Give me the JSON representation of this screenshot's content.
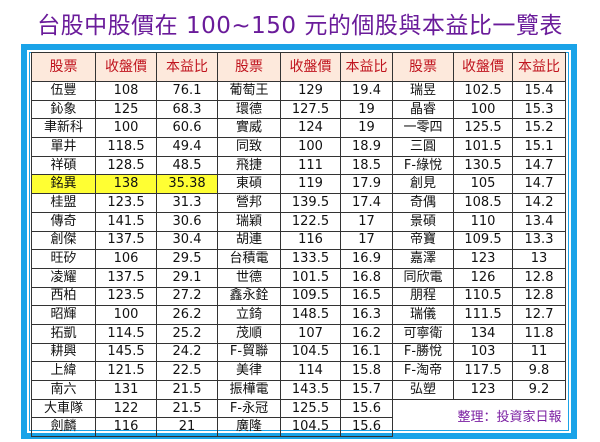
{
  "title": "台股中股價在 100~150 元的個股與本益比一覽表",
  "headers": [
    "股票",
    "收盤價",
    "本益比"
  ],
  "columns": [
    {
      "rows": [
        {
          "name": "伍豐",
          "close": "108",
          "pe": "76.1"
        },
        {
          "name": "鈊象",
          "close": "125",
          "pe": "68.3"
        },
        {
          "name": "聿新科",
          "close": "100",
          "pe": "60.6"
        },
        {
          "name": "單井",
          "close": "118.5",
          "pe": "49.4"
        },
        {
          "name": "祥碩",
          "close": "128.5",
          "pe": "48.5"
        },
        {
          "name": "銘異",
          "close": "138",
          "pe": "35.38",
          "highlight": true
        },
        {
          "name": "桂盟",
          "close": "123.5",
          "pe": "31.3"
        },
        {
          "name": "傳奇",
          "close": "141.5",
          "pe": "30.6"
        },
        {
          "name": "創傑",
          "close": "137.5",
          "pe": "30.4"
        },
        {
          "name": "旺矽",
          "close": "106",
          "pe": "29.5"
        },
        {
          "name": "凌耀",
          "close": "137.5",
          "pe": "29.1"
        },
        {
          "name": "西柏",
          "close": "123.5",
          "pe": "27.2"
        },
        {
          "name": "昭輝",
          "close": "100",
          "pe": "26.2"
        },
        {
          "name": "拓凱",
          "close": "114.5",
          "pe": "25.2"
        },
        {
          "name": "耕興",
          "close": "145.5",
          "pe": "24.2"
        },
        {
          "name": "上緯",
          "close": "121.5",
          "pe": "22.5"
        },
        {
          "name": "南六",
          "close": "131",
          "pe": "21.5"
        },
        {
          "name": "大車隊",
          "close": "122",
          "pe": "21.5"
        },
        {
          "name": "劍麟",
          "close": "116",
          "pe": "21"
        }
      ]
    },
    {
      "rows": [
        {
          "name": "葡萄王",
          "close": "129",
          "pe": "19.4"
        },
        {
          "name": "環德",
          "close": "127.5",
          "pe": "19"
        },
        {
          "name": "實威",
          "close": "124",
          "pe": "19"
        },
        {
          "name": "同致",
          "close": "100",
          "pe": "18.9"
        },
        {
          "name": "飛捷",
          "close": "111",
          "pe": "18.5"
        },
        {
          "name": "東碩",
          "close": "119",
          "pe": "17.9"
        },
        {
          "name": "營邦",
          "close": "139.5",
          "pe": "17.4"
        },
        {
          "name": "瑞穎",
          "close": "122.5",
          "pe": "17"
        },
        {
          "name": "胡連",
          "close": "116",
          "pe": "17"
        },
        {
          "name": "台積電",
          "close": "133.5",
          "pe": "16.9"
        },
        {
          "name": "世德",
          "close": "101.5",
          "pe": "16.8"
        },
        {
          "name": "鑫永銓",
          "close": "109.5",
          "pe": "16.5"
        },
        {
          "name": "立錡",
          "close": "148.5",
          "pe": "16.3"
        },
        {
          "name": "茂順",
          "close": "107",
          "pe": "16.2"
        },
        {
          "name": "F-貿聯",
          "close": "104.5",
          "pe": "16.1"
        },
        {
          "name": "美律",
          "close": "114",
          "pe": "15.8"
        },
        {
          "name": "振樺電",
          "close": "143.5",
          "pe": "15.7"
        },
        {
          "name": "F-永冠",
          "close": "125.5",
          "pe": "15.6"
        },
        {
          "name": "廣隆",
          "close": "104.5",
          "pe": "15.6"
        }
      ]
    },
    {
      "rows": [
        {
          "name": "瑞昱",
          "close": "102.5",
          "pe": "15.4"
        },
        {
          "name": "晶睿",
          "close": "100",
          "pe": "15.3"
        },
        {
          "name": "一零四",
          "close": "125.5",
          "pe": "15.2"
        },
        {
          "name": "三圓",
          "close": "101.5",
          "pe": "15.1"
        },
        {
          "name": "F-綠悅",
          "close": "130.5",
          "pe": "14.7"
        },
        {
          "name": "創見",
          "close": "105",
          "pe": "14.7"
        },
        {
          "name": "奇偶",
          "close": "108.5",
          "pe": "14.2"
        },
        {
          "name": "景碩",
          "close": "110",
          "pe": "13.4"
        },
        {
          "name": "帝寶",
          "close": "109.5",
          "pe": "13.3"
        },
        {
          "name": "嘉澤",
          "close": "123",
          "pe": "13"
        },
        {
          "name": "同欣電",
          "close": "126",
          "pe": "12.8"
        },
        {
          "name": "朋程",
          "close": "110.5",
          "pe": "12.8"
        },
        {
          "name": "瑞儀",
          "close": "111.5",
          "pe": "12.7"
        },
        {
          "name": "可寧衛",
          "close": "134",
          "pe": "11.8"
        },
        {
          "name": "F-勝悅",
          "close": "103",
          "pe": "11"
        },
        {
          "name": "F-淘帝",
          "close": "117.5",
          "pe": "9.8"
        },
        {
          "name": "弘塑",
          "close": "123",
          "pe": "9.2"
        }
      ]
    }
  ],
  "source_note": "整理：投資家日報",
  "colors": {
    "title": "#6a1b9a",
    "frame": "#1aa3e8",
    "header_bg": "#fde9dc",
    "header_text": "#c0141e",
    "highlight": "#ffff33",
    "note": "#7b1fa2"
  }
}
